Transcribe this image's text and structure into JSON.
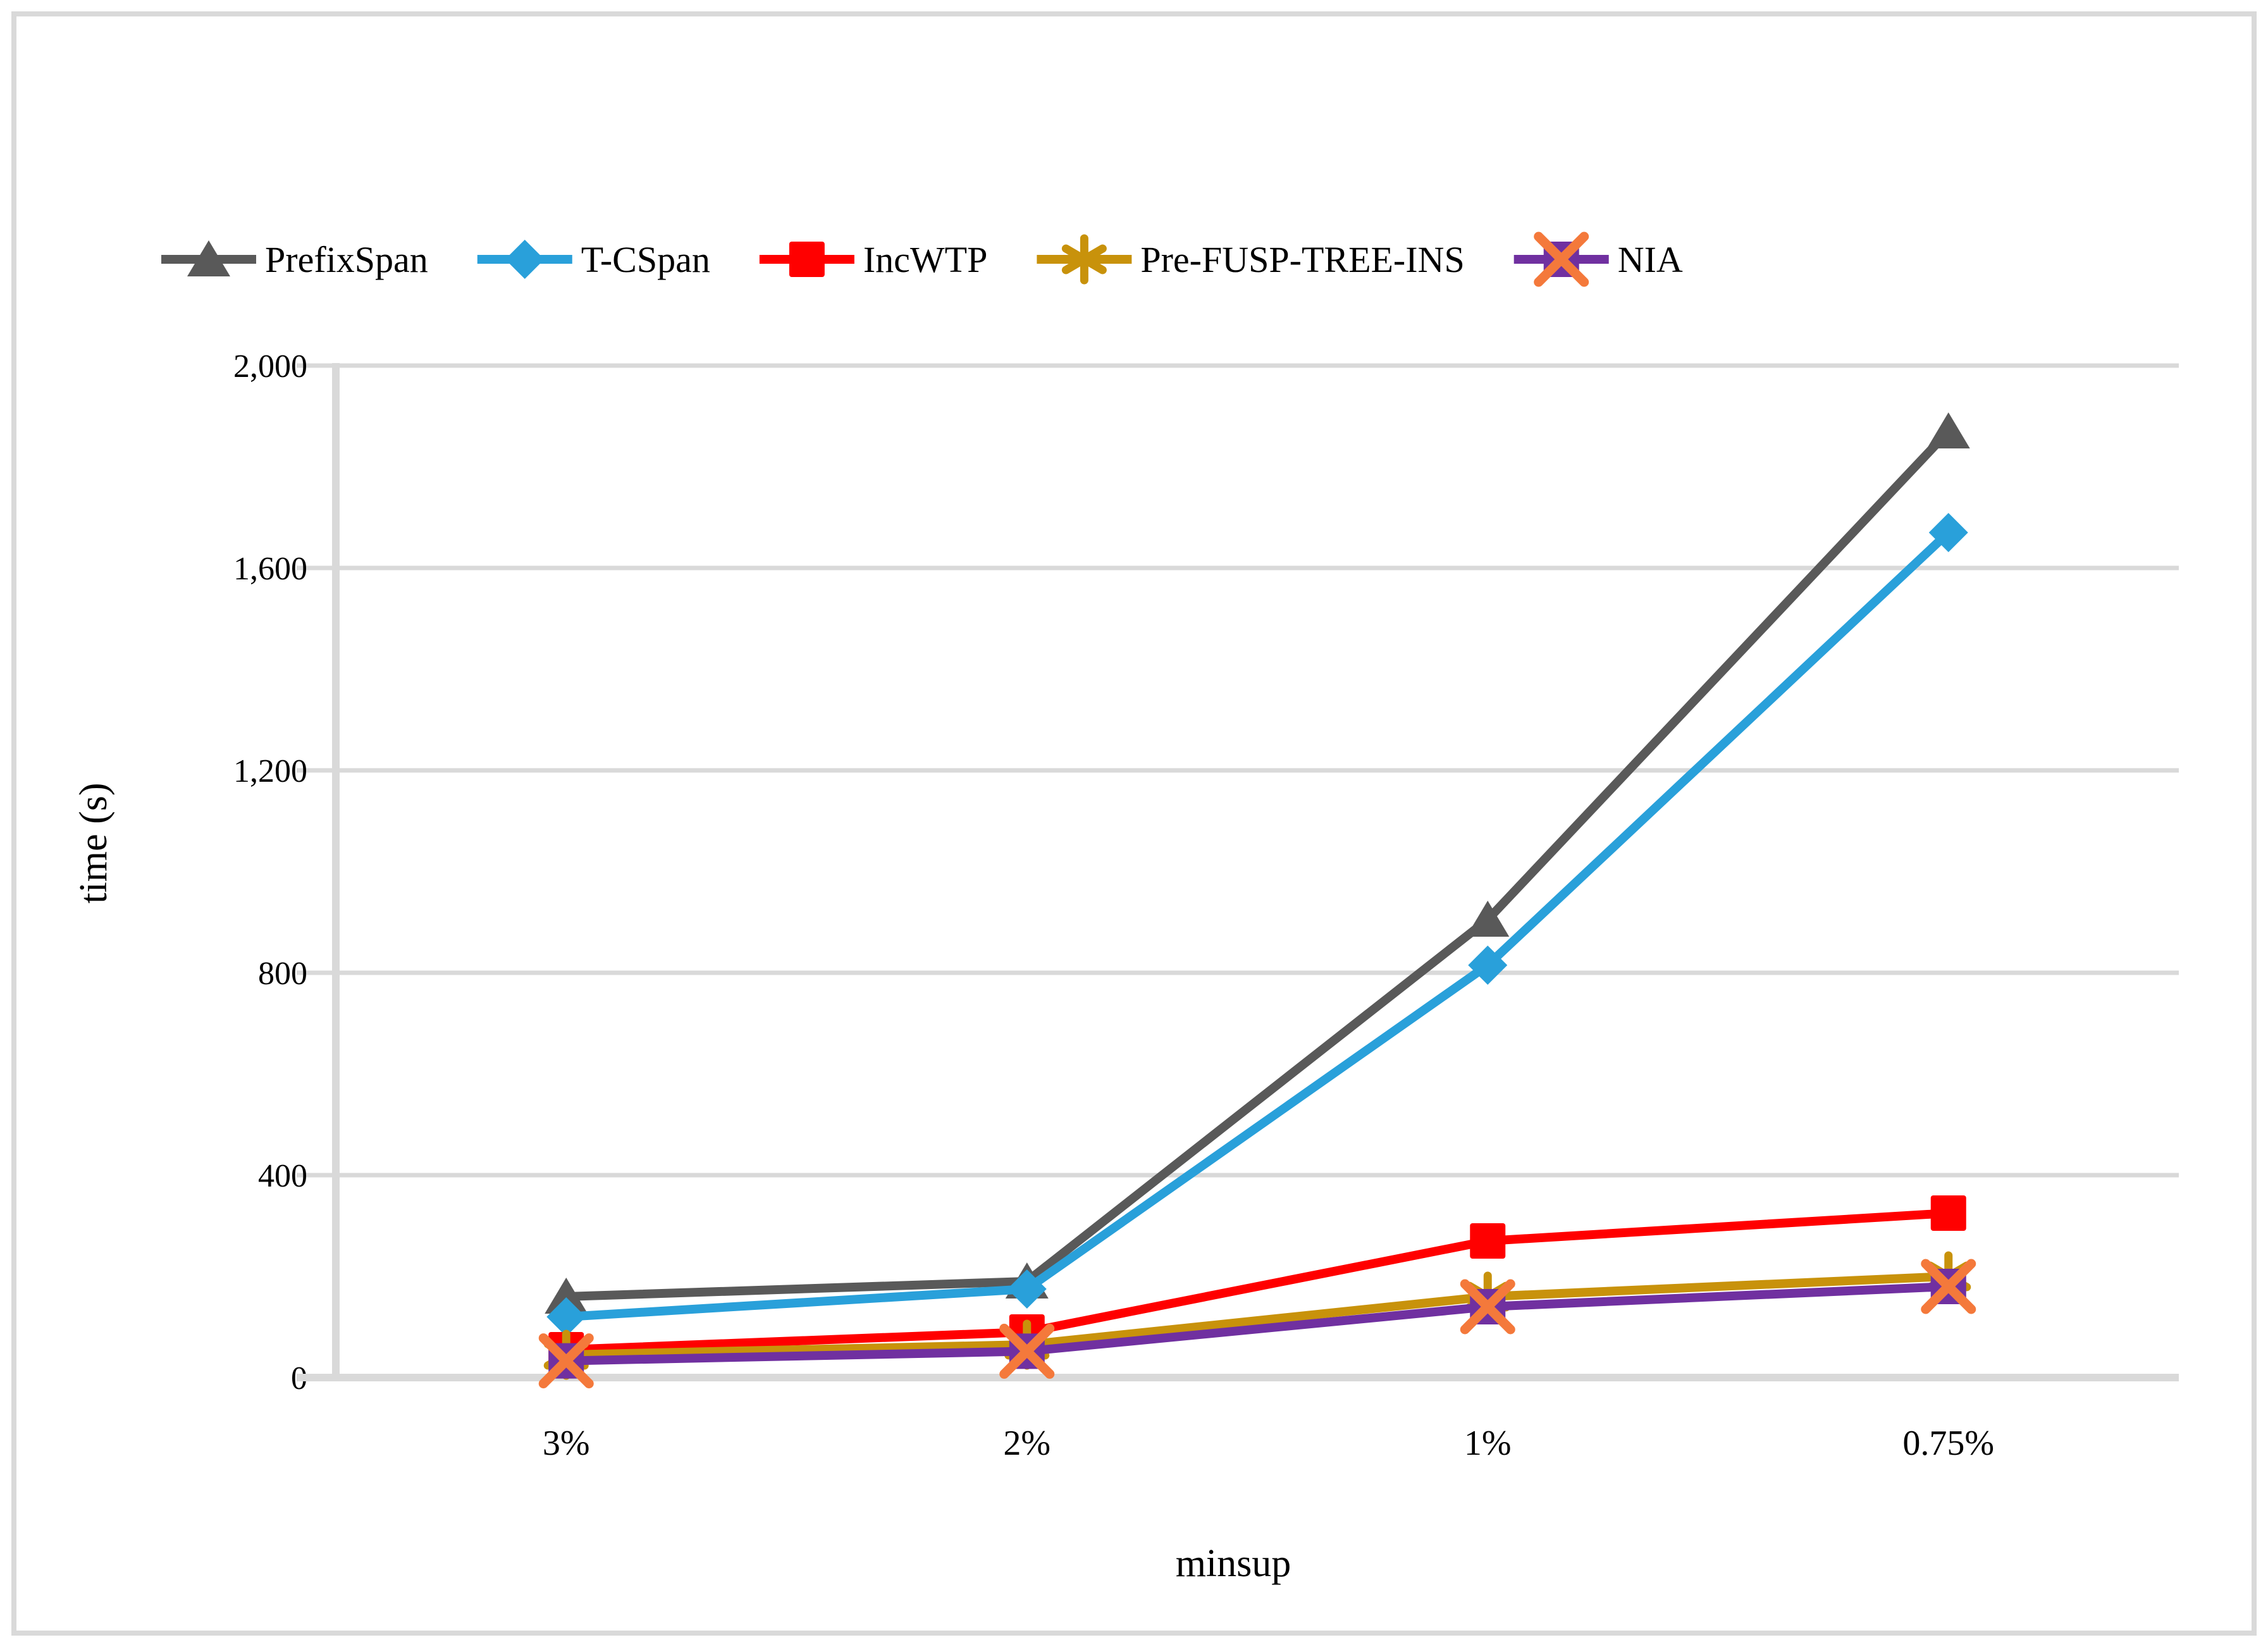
{
  "chart_data": {
    "type": "line",
    "title": "",
    "xlabel": "minsup",
    "ylabel": "time (s)",
    "categories": [
      "3%",
      "2%",
      "1%",
      "0.75%"
    ],
    "yticks": [
      0,
      400,
      800,
      1200,
      1600,
      2000
    ],
    "ytick_labels": [
      "0",
      "400",
      "800",
      "1,200",
      "1,600",
      "2,000"
    ],
    "ylim": [
      0,
      2000
    ],
    "grid": true,
    "legend_position": "top",
    "series": [
      {
        "name": "PrefixSpan",
        "marker": "triangle",
        "color": "#595959",
        "values": [
          160,
          190,
          905,
          1870
        ]
      },
      {
        "name": "T-CSpan",
        "marker": "diamond",
        "color": "#29A0DA",
        "values": [
          120,
          175,
          815,
          1670
        ]
      },
      {
        "name": "IncWTP",
        "marker": "square",
        "color": "#FF0000",
        "values": [
          55,
          90,
          270,
          325
        ]
      },
      {
        "name": "Pre-FUSP-TREE-INS",
        "marker": "asterisk",
        "color": "#C8920B",
        "values": [
          45,
          65,
          160,
          200
        ]
      },
      {
        "name": "NIA",
        "marker": "x-square",
        "color": "#7030A0",
        "accent": "#F4793B",
        "values": [
          33,
          52,
          140,
          180
        ]
      }
    ]
  },
  "colors": {
    "gridline": "#D9D9D9",
    "axis_line": "#D9D9D9",
    "figure_border": "#D9D9D9",
    "text": "#000000",
    "background": "#FFFFFF"
  }
}
